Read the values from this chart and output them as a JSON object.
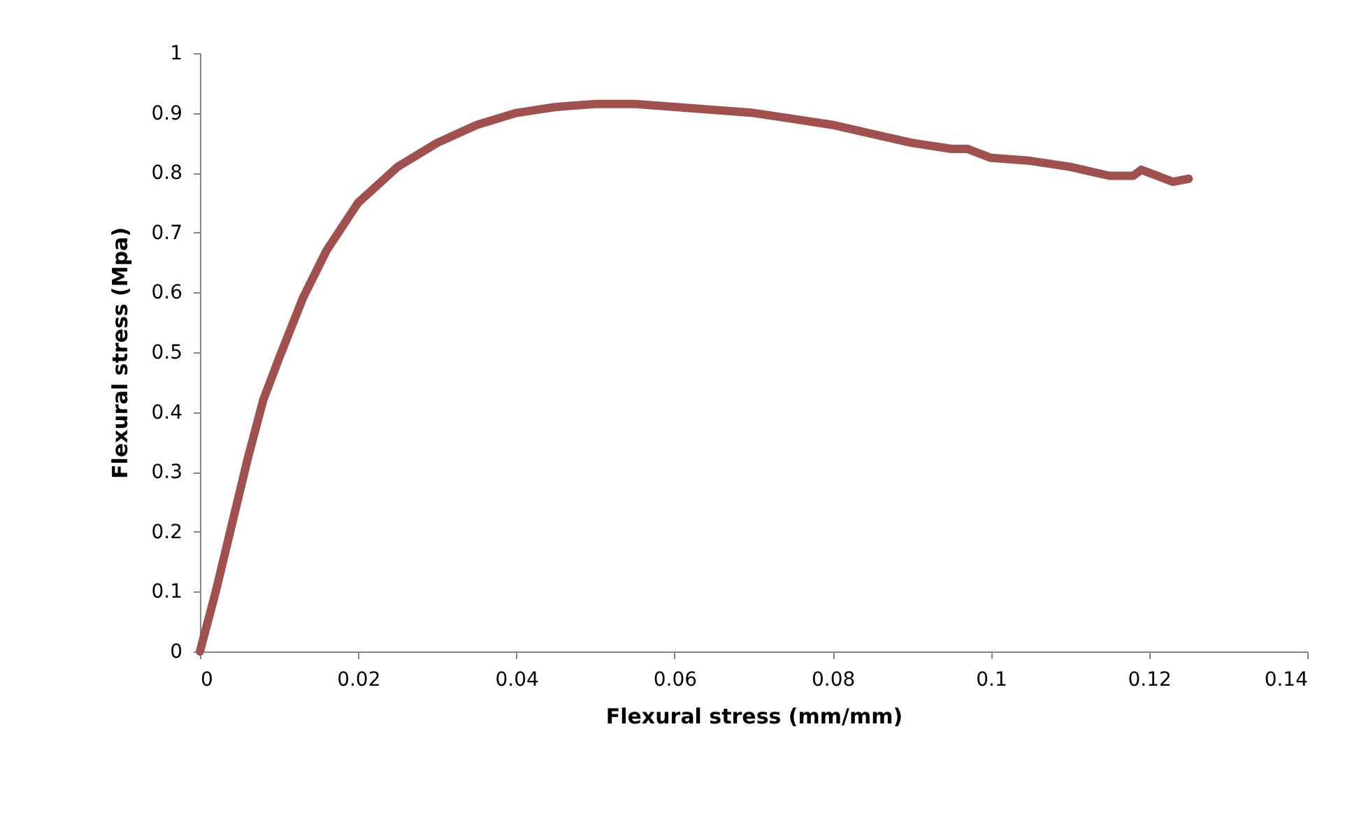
{
  "chart_data": {
    "type": "line",
    "xlabel": "Flexural stress (mm/mm)",
    "ylabel": "Flexural stress (Mpa)",
    "xlim": [
      0,
      0.14
    ],
    "xticks": [
      0,
      0.02,
      0.04,
      0.06,
      0.08,
      0.1,
      0.12,
      0.14
    ],
    "ylim": [
      0,
      1
    ],
    "yticks": [
      0,
      0.1,
      0.2,
      0.3,
      0.4,
      0.5,
      0.6,
      0.7,
      0.8,
      0.9,
      1
    ],
    "grid": false,
    "marker": "none",
    "line_style": "solid",
    "series": [
      {
        "color": "#a0504d",
        "x": [
          0,
          0.002,
          0.004,
          0.006,
          0.008,
          0.01,
          0.013,
          0.016,
          0.02,
          0.025,
          0.03,
          0.035,
          0.04,
          0.045,
          0.05,
          0.055,
          0.06,
          0.065,
          0.07,
          0.075,
          0.08,
          0.085,
          0.09,
          0.095,
          0.097,
          0.1,
          0.105,
          0.11,
          0.115,
          0.118,
          0.119,
          0.121,
          0.123,
          0.125
        ],
        "values": [
          0,
          0.1,
          0.21,
          0.32,
          0.42,
          0.49,
          0.59,
          0.67,
          0.75,
          0.81,
          0.85,
          0.88,
          0.9,
          0.91,
          0.915,
          0.915,
          0.91,
          0.905,
          0.9,
          0.89,
          0.88,
          0.865,
          0.85,
          0.84,
          0.84,
          0.825,
          0.82,
          0.81,
          0.795,
          0.795,
          0.805,
          0.795,
          0.785,
          0.79
        ]
      }
    ]
  }
}
